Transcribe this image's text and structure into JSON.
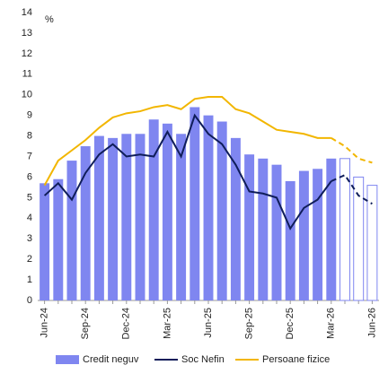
{
  "chart_data": {
    "type": "bar_line",
    "y_label": "%",
    "categories": [
      "Jun-24",
      null,
      null,
      "Sep-24",
      null,
      null,
      "Dec-24",
      null,
      null,
      "Mar-25",
      null,
      null,
      "Jun-25",
      null,
      null,
      "Sep-25",
      null,
      null,
      "Dec-25",
      null,
      null,
      "Mar-26",
      null,
      null,
      "Jun-26"
    ],
    "forecast_start": "Mar-26",
    "ylim": [
      0,
      14
    ],
    "yticks": [
      0,
      1,
      2,
      3,
      4,
      5,
      6,
      7,
      8,
      9,
      10,
      11,
      12,
      13,
      14
    ],
    "series": [
      {
        "name": "Credit neguv",
        "kind": "bar",
        "color": "#7f86f0",
        "values": [
          5.7,
          5.9,
          6.8,
          7.5,
          8.0,
          7.9,
          8.1,
          8.1,
          8.8,
          8.6,
          8.1,
          9.4,
          9.0,
          8.7,
          7.9,
          7.1,
          6.9,
          6.6,
          5.8,
          6.3,
          6.4,
          6.9,
          6.9,
          6.0,
          5.6
        ]
      },
      {
        "name": "Soc Nefin",
        "kind": "line",
        "color": "#0f1d5a",
        "values": [
          5.1,
          5.7,
          4.9,
          6.2,
          7.1,
          7.6,
          7.0,
          7.1,
          7.0,
          8.2,
          7.0,
          9.0,
          8.1,
          7.6,
          6.6,
          5.3,
          5.2,
          5.0,
          3.5,
          4.5,
          4.9,
          5.8,
          6.1,
          5.1,
          4.7
        ]
      },
      {
        "name": "Persoane fizice",
        "kind": "line",
        "color": "#f2b600",
        "values": [
          5.6,
          6.8,
          7.3,
          7.8,
          8.4,
          8.9,
          9.1,
          9.2,
          9.4,
          9.5,
          9.3,
          9.8,
          9.9,
          9.9,
          9.3,
          9.1,
          8.7,
          8.3,
          8.2,
          8.1,
          7.9,
          7.9,
          7.5,
          6.9,
          6.7
        ]
      }
    ]
  }
}
